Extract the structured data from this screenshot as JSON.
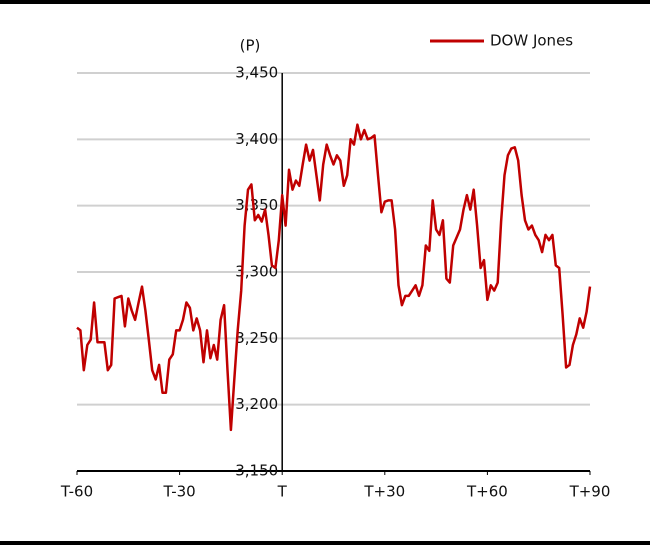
{
  "chart_data": {
    "type": "line",
    "y_label": "(P)",
    "x": [
      -60,
      -59,
      -58,
      -57,
      -56,
      -55,
      -54,
      -53,
      -52,
      -51,
      -50,
      -49,
      -48,
      -47,
      -46,
      -45,
      -44,
      -43,
      -42,
      -41,
      -40,
      -39,
      -38,
      -37,
      -36,
      -35,
      -34,
      -33,
      -32,
      -31,
      -30,
      -29,
      -28,
      -27,
      -26,
      -25,
      -24,
      -23,
      -22,
      -21,
      -20,
      -19,
      -18,
      -17,
      -16,
      -15,
      -14,
      -13,
      -12,
      -11,
      -10,
      -9,
      -8,
      -7,
      -6,
      -5,
      -4,
      -3,
      -2,
      -1,
      0,
      1,
      2,
      3,
      4,
      5,
      6,
      7,
      8,
      9,
      10,
      11,
      12,
      13,
      14,
      15,
      16,
      17,
      18,
      19,
      20,
      21,
      22,
      23,
      24,
      25,
      26,
      27,
      28,
      29,
      30,
      31,
      32,
      33,
      34,
      35,
      36,
      37,
      38,
      39,
      40,
      41,
      42,
      43,
      44,
      45,
      46,
      47,
      48,
      49,
      50,
      51,
      52,
      53,
      54,
      55,
      56,
      57,
      58,
      59,
      60,
      61,
      62,
      63,
      64,
      65,
      66,
      67,
      68,
      69,
      70,
      71,
      72,
      73,
      74,
      75,
      76,
      77,
      78,
      79,
      80,
      81,
      82,
      83,
      84,
      85,
      86,
      87,
      88,
      89,
      90
    ],
    "series": [
      {
        "name": "DOW Jones",
        "color": "#c00000",
        "values": [
          3258,
          3256,
          3226,
          3245,
          3249,
          3277,
          3247,
          3247,
          3247,
          3226,
          3230,
          3280,
          3281,
          3282,
          3259,
          3280,
          3271,
          3264,
          3277,
          3289,
          3271,
          3249,
          3226,
          3219,
          3230,
          3209,
          3209,
          3234,
          3238,
          3256,
          3256,
          3264,
          3277,
          3273,
          3256,
          3265,
          3256,
          3232,
          3256,
          3235,
          3245,
          3234,
          3264,
          3275,
          3226,
          3181,
          3219,
          3256,
          3286,
          3335,
          3362,
          3366,
          3339,
          3343,
          3338,
          3347,
          3328,
          3305,
          3303,
          3324,
          3358,
          3335,
          3377,
          3362,
          3369,
          3365,
          3381,
          3396,
          3384,
          3392,
          3373,
          3354,
          3381,
          3396,
          3388,
          3381,
          3388,
          3384,
          3365,
          3373,
          3400,
          3396,
          3411,
          3400,
          3407,
          3400,
          3401,
          3403,
          3373,
          3345,
          3353,
          3354,
          3354,
          3332,
          3290,
          3275,
          3282,
          3282,
          3286,
          3290,
          3282,
          3290,
          3320,
          3316,
          3354,
          3332,
          3328,
          3339,
          3295,
          3292,
          3320,
          3326,
          3332,
          3347,
          3358,
          3347,
          3362,
          3335,
          3303,
          3309,
          3279,
          3290,
          3286,
          3292,
          3338,
          3373,
          3388,
          3393,
          3394,
          3384,
          3358,
          3339,
          3332,
          3335,
          3328,
          3324,
          3315,
          3328,
          3324,
          3328,
          3305,
          3303,
          3268,
          3228,
          3230,
          3245,
          3253,
          3265,
          3258,
          3270,
          3289
        ]
      }
    ],
    "xlim": [
      -60,
      90
    ],
    "xticks": [
      {
        "value": -60,
        "label": "T-60"
      },
      {
        "value": -30,
        "label": "T-30"
      },
      {
        "value": 0,
        "label": "T"
      },
      {
        "value": 30,
        "label": "T+30"
      },
      {
        "value": 60,
        "label": "T+60"
      },
      {
        "value": 90,
        "label": "T+90"
      }
    ],
    "ylim": [
      3150,
      3450
    ],
    "yticks": [
      {
        "value": 3150,
        "label": "3,150"
      },
      {
        "value": 3200,
        "label": "3,200"
      },
      {
        "value": 3250,
        "label": "3,250"
      },
      {
        "value": 3300,
        "label": "3,300"
      },
      {
        "value": 3350,
        "label": "3,350"
      },
      {
        "value": 3400,
        "label": "3,400"
      },
      {
        "value": 3450,
        "label": "3,450"
      }
    ],
    "grid": true,
    "legend": "top-right"
  }
}
